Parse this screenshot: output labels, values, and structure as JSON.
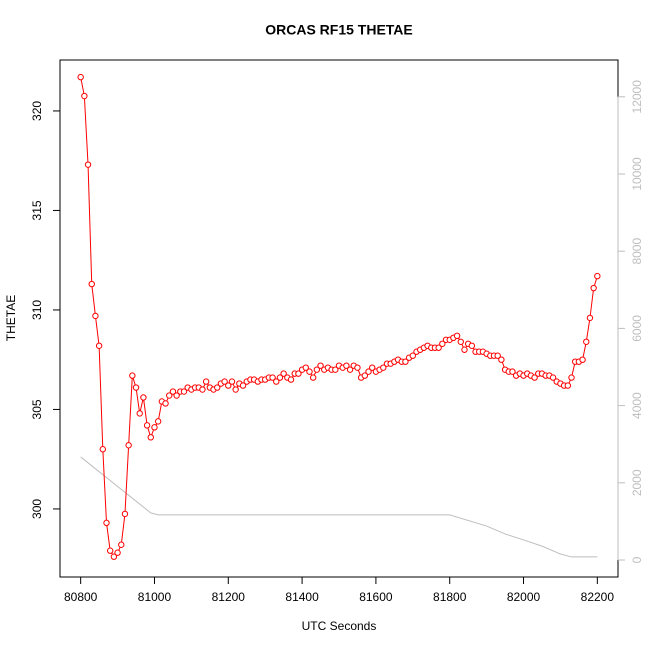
{
  "chart_data": {
    "type": "line",
    "title": "ORCAS RF15 THETAE",
    "xlabel": "UTC Seconds",
    "ylabel": "THETAE",
    "xlim": [
      80744,
      82256
    ],
    "ylim": [
      296.58,
      322.56
    ],
    "y2lim": [
      -440,
      12953
    ],
    "xticks": [
      80800,
      81000,
      81200,
      81400,
      81600,
      81800,
      82000,
      82200
    ],
    "yticks": [
      300,
      305,
      310,
      315,
      320
    ],
    "y2ticks": [
      0,
      2000,
      4000,
      6000,
      8000,
      10000,
      12000
    ],
    "series": [
      {
        "color": "#ff0000",
        "markers": true,
        "x": [
          80800,
          80810,
          80820,
          80830,
          80840,
          80850,
          80860,
          80870,
          80880,
          80890,
          80900,
          80910,
          80920,
          80930,
          80940,
          80950,
          80960,
          80970,
          80980,
          80990,
          81000,
          81010,
          81020,
          81030,
          81040,
          81050,
          81060,
          81070,
          81080,
          81090,
          81100,
          81110,
          81120,
          81130,
          81140,
          81150,
          81160,
          81170,
          81180,
          81190,
          81200,
          81210,
          81220,
          81230,
          81240,
          81250,
          81260,
          81270,
          81280,
          81290,
          81300,
          81310,
          81320,
          81330,
          81340,
          81350,
          81360,
          81370,
          81380,
          81390,
          81400,
          81410,
          81420,
          81430,
          81440,
          81450,
          81460,
          81470,
          81480,
          81490,
          81500,
          81510,
          81520,
          81530,
          81540,
          81550,
          81560,
          81570,
          81580,
          81590,
          81600,
          81610,
          81620,
          81630,
          81640,
          81650,
          81660,
          81670,
          81680,
          81690,
          81700,
          81710,
          81720,
          81730,
          81740,
          81750,
          81760,
          81770,
          81780,
          81790,
          81800,
          81810,
          81820,
          81830,
          81840,
          81850,
          81860,
          81870,
          81880,
          81890,
          81900,
          81910,
          81920,
          81930,
          81940,
          81950,
          81960,
          81970,
          81980,
          81990,
          82000,
          82010,
          82020,
          82030,
          82040,
          82050,
          82060,
          82070,
          82080,
          82090,
          82100,
          82110,
          82120,
          82130,
          82140,
          82150,
          82160,
          82170,
          82180,
          82190,
          82200
        ],
        "values": [
          321.7,
          320.75,
          317.3,
          311.3,
          309.7,
          308.2,
          303.0,
          299.3,
          297.9,
          297.6,
          297.8,
          298.2,
          299.75,
          303.2,
          306.7,
          306.1,
          304.8,
          305.6,
          304.2,
          303.6,
          304.1,
          304.4,
          305.4,
          305.3,
          305.7,
          305.9,
          305.7,
          305.9,
          305.9,
          306.1,
          306.0,
          306.1,
          306.1,
          306.0,
          306.4,
          306.1,
          306.0,
          306.1,
          306.3,
          306.4,
          306.2,
          306.4,
          306.0,
          306.3,
          306.2,
          306.4,
          306.5,
          306.5,
          306.4,
          306.5,
          306.5,
          306.6,
          306.6,
          306.4,
          306.6,
          306.8,
          306.6,
          306.5,
          306.8,
          306.8,
          307.0,
          307.1,
          306.9,
          306.6,
          307.0,
          307.2,
          307.0,
          307.1,
          307.0,
          307.0,
          307.2,
          307.1,
          307.2,
          307.0,
          307.2,
          307.1,
          306.6,
          306.7,
          306.9,
          307.1,
          306.9,
          307.0,
          307.1,
          307.3,
          307.3,
          307.4,
          307.5,
          307.4,
          307.4,
          307.6,
          307.7,
          307.9,
          308.0,
          308.1,
          308.2,
          308.1,
          308.1,
          308.1,
          308.3,
          308.5,
          308.5,
          308.6,
          308.7,
          308.4,
          308.0,
          308.3,
          308.2,
          307.9,
          307.9,
          307.9,
          307.8,
          307.7,
          307.7,
          307.7,
          307.5,
          307.0,
          306.9,
          306.9,
          306.7,
          306.8,
          306.7,
          306.8,
          306.7,
          306.6,
          306.8,
          306.8,
          306.7,
          306.7,
          306.6,
          306.4,
          306.3,
          306.2,
          306.2,
          306.6,
          307.4,
          307.4,
          307.5,
          308.4,
          309.6,
          311.1,
          311.7
        ]
      },
      {
        "color": "#bebebe",
        "markers": false,
        "axis": "y2",
        "x": [
          80800,
          80990,
          81010,
          81800,
          81900,
          81950,
          82000,
          82050,
          82100,
          82130,
          82200
        ],
        "values": [
          2670,
          1220,
          1170,
          1170,
          880,
          675,
          520,
          360,
          155,
          80,
          80
        ]
      }
    ]
  }
}
